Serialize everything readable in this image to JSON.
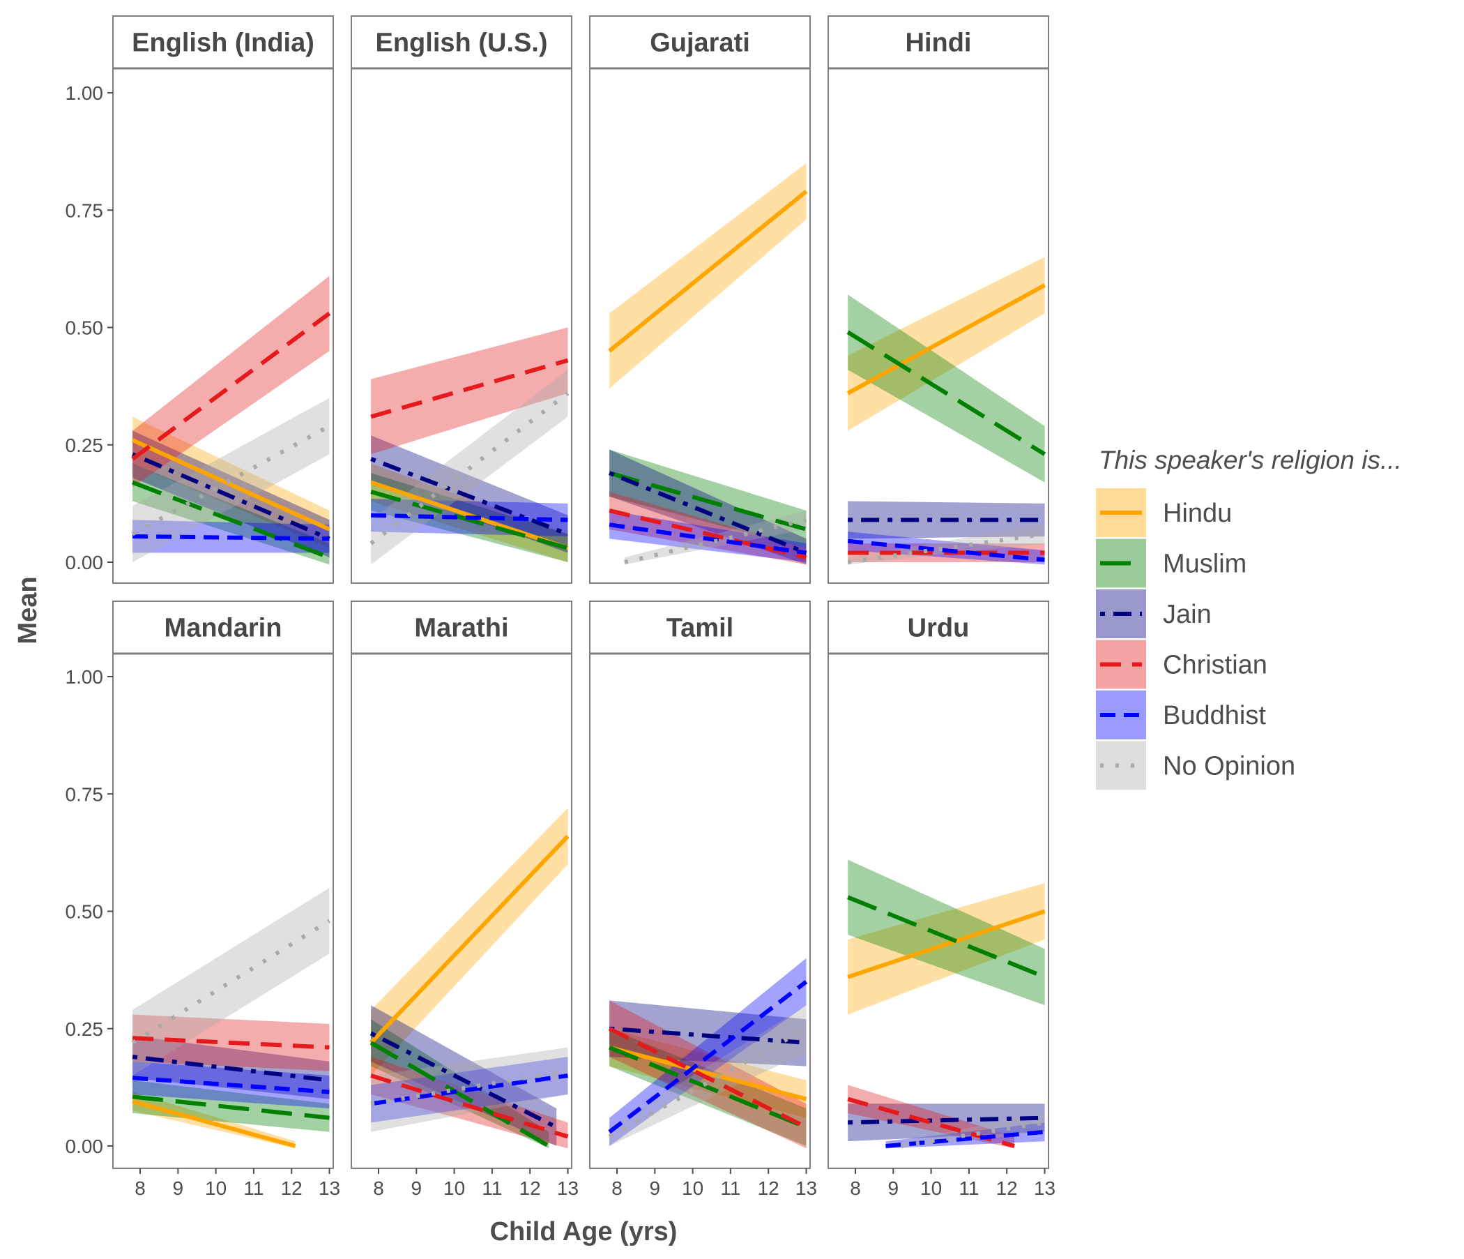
{
  "chart_data": {
    "type": "line",
    "layout": "facet_wrap",
    "xlabel": "Child Age (yrs)",
    "ylabel": "Mean",
    "xlim": [
      7.6,
      13.2
    ],
    "ylim": [
      -0.05,
      1.05
    ],
    "x_ticks": [
      8,
      9,
      10,
      11,
      12,
      13
    ],
    "y_ticks": [
      0.0,
      0.25,
      0.5,
      0.75,
      1.0
    ],
    "y_tick_labels": [
      "0.00",
      "0.25",
      "0.50",
      "0.75",
      "1.00"
    ],
    "grid": false,
    "legend": {
      "title": "This speaker's religion is...",
      "position": "right",
      "entries": [
        {
          "name": "Hindu",
          "color": "#FFA500",
          "dash": "solid"
        },
        {
          "name": "Muslim",
          "color": "#008000",
          "dash": "longdash"
        },
        {
          "name": "Jain",
          "color": "#000080",
          "dash": "dotdash"
        },
        {
          "name": "Christian",
          "color": "#E41A1C",
          "dash": "dashed"
        },
        {
          "name": "Buddhist",
          "color": "#0000FF",
          "dash": "shortdash"
        },
        {
          "name": "No Opinion",
          "color": "#A9A9A9",
          "dash": "dotted"
        }
      ]
    },
    "panels": [
      {
        "title": "English (India)",
        "series": [
          {
            "name": "Hindu",
            "x": [
              7.8,
              13
            ],
            "y": [
              0.26,
              0.07
            ],
            "band": [
              0.05,
              0.04
            ]
          },
          {
            "name": "Muslim",
            "x": [
              7.8,
              13
            ],
            "y": [
              0.17,
              0.01
            ],
            "band": [
              0.04,
              0.03
            ]
          },
          {
            "name": "Jain",
            "x": [
              7.8,
              13
            ],
            "y": [
              0.23,
              0.05
            ],
            "band": [
              0.05,
              0.04
            ]
          },
          {
            "name": "Christian",
            "x": [
              7.8,
              13
            ],
            "y": [
              0.22,
              0.53
            ],
            "band": [
              0.06,
              0.08
            ]
          },
          {
            "name": "Buddhist",
            "x": [
              7.8,
              13
            ],
            "y": [
              0.055,
              0.05
            ],
            "band": [
              0.035,
              0.03
            ]
          },
          {
            "name": "No Opinion",
            "x": [
              7.8,
              13
            ],
            "y": [
              0.06,
              0.29
            ],
            "band": [
              0.06,
              0.06
            ]
          }
        ]
      },
      {
        "title": "English (U.S.)",
        "series": [
          {
            "name": "Hindu",
            "x": [
              7.8,
              13
            ],
            "y": [
              0.17,
              0.03
            ],
            "band": [
              0.04,
              0.03
            ]
          },
          {
            "name": "Muslim",
            "x": [
              7.8,
              13
            ],
            "y": [
              0.15,
              0.03
            ],
            "band": [
              0.04,
              0.03
            ]
          },
          {
            "name": "Jain",
            "x": [
              7.8,
              13
            ],
            "y": [
              0.22,
              0.06
            ],
            "band": [
              0.05,
              0.04
            ]
          },
          {
            "name": "Christian",
            "x": [
              7.8,
              13
            ],
            "y": [
              0.31,
              0.43
            ],
            "band": [
              0.08,
              0.07
            ]
          },
          {
            "name": "Buddhist",
            "x": [
              7.8,
              13
            ],
            "y": [
              0.1,
              0.09
            ],
            "band": [
              0.035,
              0.035
            ]
          },
          {
            "name": "No Opinion",
            "x": [
              7.8,
              13
            ],
            "y": [
              0.04,
              0.36
            ],
            "band": [
              0.05,
              0.05
            ]
          }
        ]
      },
      {
        "title": "Gujarati",
        "series": [
          {
            "name": "Hindu",
            "x": [
              7.8,
              13
            ],
            "y": [
              0.45,
              0.79
            ],
            "band": [
              0.08,
              0.06
            ]
          },
          {
            "name": "Muslim",
            "x": [
              7.8,
              13
            ],
            "y": [
              0.19,
              0.07
            ],
            "band": [
              0.05,
              0.04
            ]
          },
          {
            "name": "Jain",
            "x": [
              7.8,
              13
            ],
            "y": [
              0.19,
              0.02
            ],
            "band": [
              0.05,
              0.03
            ]
          },
          {
            "name": "Christian",
            "x": [
              7.8,
              13
            ],
            "y": [
              0.11,
              0.01
            ],
            "band": [
              0.04,
              0.02
            ]
          },
          {
            "name": "Buddhist",
            "x": [
              7.8,
              13
            ],
            "y": [
              0.08,
              0.02
            ],
            "band": [
              0.03,
              0.02
            ]
          },
          {
            "name": "No Opinion",
            "x": [
              8.2,
              13
            ],
            "y": [
              0.0,
              0.09
            ],
            "band": [
              0.01,
              0.02
            ]
          }
        ]
      },
      {
        "title": "Hindi",
        "series": [
          {
            "name": "Hindu",
            "x": [
              7.8,
              13
            ],
            "y": [
              0.36,
              0.59
            ],
            "band": [
              0.08,
              0.06
            ]
          },
          {
            "name": "Muslim",
            "x": [
              7.8,
              13
            ],
            "y": [
              0.49,
              0.23
            ],
            "band": [
              0.08,
              0.06
            ]
          },
          {
            "name": "Jain",
            "x": [
              7.8,
              13
            ],
            "y": [
              0.09,
              0.09
            ],
            "band": [
              0.04,
              0.035
            ]
          },
          {
            "name": "Christian",
            "x": [
              7.8,
              13
            ],
            "y": [
              0.02,
              0.02
            ],
            "band": [
              0.02,
              0.02
            ]
          },
          {
            "name": "Buddhist",
            "x": [
              7.8,
              13
            ],
            "y": [
              0.045,
              0.005
            ],
            "band": [
              0.02,
              0.02
            ]
          },
          {
            "name": "No Opinion",
            "x": [
              7.8,
              13
            ],
            "y": [
              0.0,
              0.06
            ],
            "band": [
              0.01,
              0.02
            ]
          }
        ]
      },
      {
        "title": "Mandarin",
        "series": [
          {
            "name": "Hindu",
            "x": [
              7.8,
              12.1
            ],
            "y": [
              0.095,
              0.0
            ],
            "band": [
              0.02,
              0.01
            ]
          },
          {
            "name": "Muslim",
            "x": [
              7.8,
              13
            ],
            "y": [
              0.105,
              0.06
            ],
            "band": [
              0.035,
              0.03
            ]
          },
          {
            "name": "Jain",
            "x": [
              7.8,
              13
            ],
            "y": [
              0.19,
              0.14
            ],
            "band": [
              0.045,
              0.04
            ]
          },
          {
            "name": "Christian",
            "x": [
              7.8,
              13
            ],
            "y": [
              0.23,
              0.21
            ],
            "band": [
              0.05,
              0.05
            ]
          },
          {
            "name": "Buddhist",
            "x": [
              7.8,
              13
            ],
            "y": [
              0.145,
              0.115
            ],
            "band": [
              0.035,
              0.035
            ]
          },
          {
            "name": "No Opinion",
            "x": [
              7.8,
              13
            ],
            "y": [
              0.22,
              0.48
            ],
            "band": [
              0.07,
              0.07
            ]
          }
        ]
      },
      {
        "title": "Marathi",
        "series": [
          {
            "name": "Hindu",
            "x": [
              7.8,
              13
            ],
            "y": [
              0.22,
              0.66
            ],
            "band": [
              0.07,
              0.06
            ]
          },
          {
            "name": "Muslim",
            "x": [
              7.8,
              12.5
            ],
            "y": [
              0.22,
              0.0
            ],
            "band": [
              0.05,
              0.03
            ]
          },
          {
            "name": "Jain",
            "x": [
              7.8,
              12.7
            ],
            "y": [
              0.24,
              0.04
            ],
            "band": [
              0.06,
              0.04
            ]
          },
          {
            "name": "Christian",
            "x": [
              7.8,
              13
            ],
            "y": [
              0.15,
              0.02
            ],
            "band": [
              0.04,
              0.03
            ]
          },
          {
            "name": "Buddhist",
            "x": [
              7.8,
              13
            ],
            "y": [
              0.09,
              0.15
            ],
            "band": [
              0.04,
              0.04
            ]
          },
          {
            "name": "No Opinion",
            "x": [
              7.8,
              13
            ],
            "y": [
              0.09,
              0.16
            ],
            "band": [
              0.06,
              0.05
            ]
          }
        ]
      },
      {
        "title": "Tamil",
        "series": [
          {
            "name": "Hindu",
            "x": [
              7.8,
              13
            ],
            "y": [
              0.21,
              0.1
            ],
            "band": [
              0.04,
              0.04
            ]
          },
          {
            "name": "Muslim",
            "x": [
              7.8,
              13
            ],
            "y": [
              0.21,
              0.04
            ],
            "band": [
              0.04,
              0.04
            ]
          },
          {
            "name": "Jain",
            "x": [
              7.8,
              13
            ],
            "y": [
              0.25,
              0.22
            ],
            "band": [
              0.06,
              0.05
            ]
          },
          {
            "name": "Christian",
            "x": [
              7.8,
              13
            ],
            "y": [
              0.25,
              0.04
            ],
            "band": [
              0.06,
              0.05
            ]
          },
          {
            "name": "Buddhist",
            "x": [
              7.8,
              13
            ],
            "y": [
              0.03,
              0.35
            ],
            "band": [
              0.03,
              0.05
            ]
          },
          {
            "name": "No Opinion",
            "x": [
              7.8,
              13
            ],
            "y": [
              0.02,
              0.25
            ],
            "band": [
              0.02,
              0.05
            ]
          }
        ]
      },
      {
        "title": "Urdu",
        "series": [
          {
            "name": "Hindu",
            "x": [
              7.8,
              13
            ],
            "y": [
              0.36,
              0.5
            ],
            "band": [
              0.08,
              0.06
            ]
          },
          {
            "name": "Muslim",
            "x": [
              7.8,
              13
            ],
            "y": [
              0.53,
              0.36
            ],
            "band": [
              0.08,
              0.06
            ]
          },
          {
            "name": "Jain",
            "x": [
              7.8,
              13
            ],
            "y": [
              0.05,
              0.06
            ],
            "band": [
              0.04,
              0.03
            ]
          },
          {
            "name": "Christian",
            "x": [
              7.8,
              12.2
            ],
            "y": [
              0.1,
              0.0
            ],
            "band": [
              0.03,
              0.02
            ]
          },
          {
            "name": "Buddhist",
            "x": [
              8.8,
              13
            ],
            "y": [
              0.0,
              0.03
            ],
            "band": [
              0.01,
              0.02
            ]
          },
          {
            "name": "No Opinion",
            "x": [
              9.2,
              13
            ],
            "y": [
              0.0,
              0.05
            ],
            "band": [
              0.01,
              0.02
            ]
          }
        ]
      }
    ]
  }
}
